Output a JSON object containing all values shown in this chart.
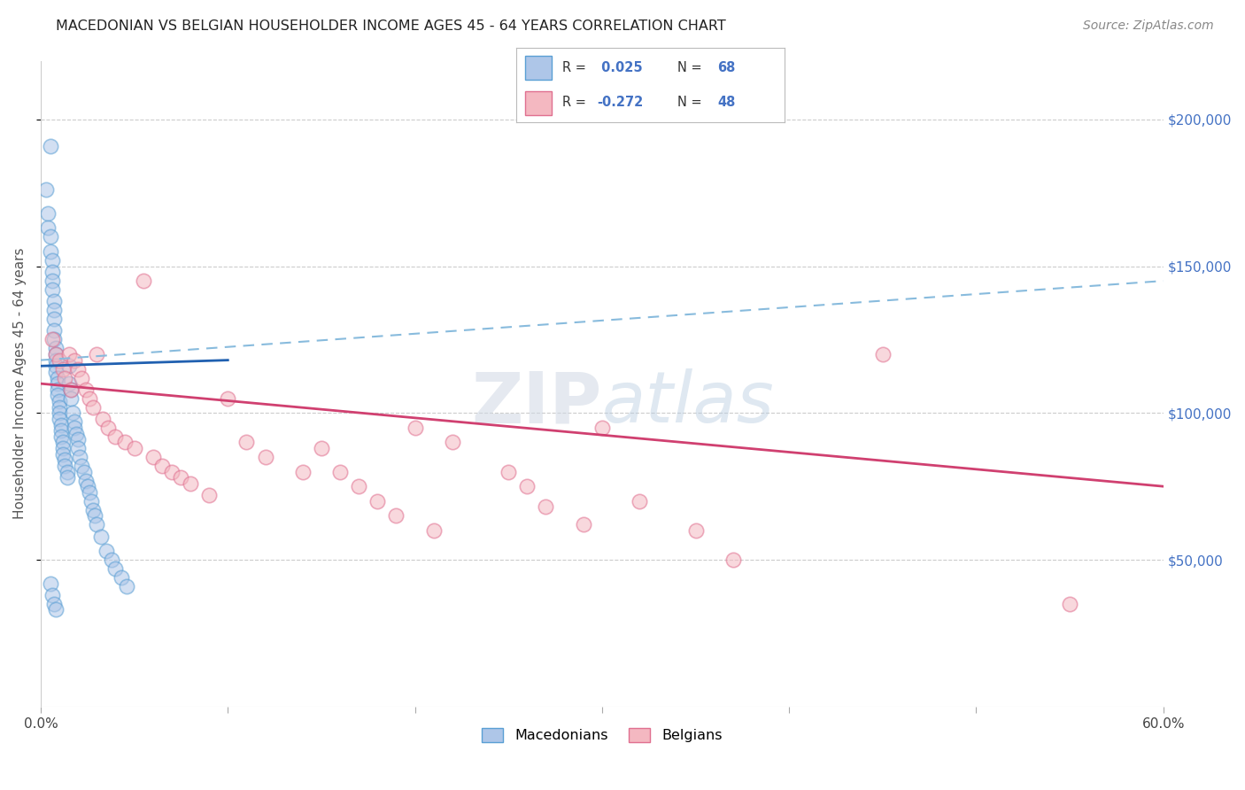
{
  "title": "MACEDONIAN VS BELGIAN HOUSEHOLDER INCOME AGES 45 - 64 YEARS CORRELATION CHART",
  "source": "Source: ZipAtlas.com",
  "ylabel": "Householder Income Ages 45 - 64 years",
  "xlim": [
    0.0,
    0.6
  ],
  "ylim": [
    0,
    220000
  ],
  "blue_color": "#aec6e8",
  "blue_edge": "#5a9fd4",
  "pink_color": "#f4b8c1",
  "pink_edge": "#e07090",
  "trend_blue": "#2060b0",
  "trend_pink": "#d04070",
  "trend_dashed_blue": "#88bbdd",
  "background": "#ffffff",
  "mac_x": [
    0.003,
    0.004,
    0.004,
    0.005,
    0.005,
    0.005,
    0.006,
    0.006,
    0.006,
    0.006,
    0.007,
    0.007,
    0.007,
    0.007,
    0.007,
    0.008,
    0.008,
    0.008,
    0.008,
    0.008,
    0.009,
    0.009,
    0.009,
    0.009,
    0.01,
    0.01,
    0.01,
    0.01,
    0.011,
    0.011,
    0.011,
    0.012,
    0.012,
    0.012,
    0.013,
    0.013,
    0.014,
    0.014,
    0.015,
    0.015,
    0.016,
    0.016,
    0.017,
    0.018,
    0.018,
    0.019,
    0.02,
    0.02,
    0.021,
    0.022,
    0.023,
    0.024,
    0.025,
    0.026,
    0.027,
    0.028,
    0.029,
    0.03,
    0.032,
    0.035,
    0.038,
    0.04,
    0.043,
    0.046,
    0.005,
    0.006,
    0.007,
    0.008
  ],
  "mac_y": [
    176000,
    168000,
    163000,
    191000,
    160000,
    155000,
    152000,
    148000,
    145000,
    142000,
    138000,
    135000,
    132000,
    128000,
    125000,
    122000,
    120000,
    118000,
    116000,
    114000,
    112000,
    110000,
    108000,
    106000,
    104000,
    102000,
    100000,
    98000,
    96000,
    94000,
    92000,
    90000,
    88000,
    86000,
    84000,
    82000,
    80000,
    78000,
    116000,
    110000,
    108000,
    105000,
    100000,
    97000,
    95000,
    93000,
    91000,
    88000,
    85000,
    82000,
    80000,
    77000,
    75000,
    73000,
    70000,
    67000,
    65000,
    62000,
    58000,
    53000,
    50000,
    47000,
    44000,
    41000,
    42000,
    38000,
    35000,
    33000
  ],
  "bel_x": [
    0.006,
    0.008,
    0.01,
    0.012,
    0.013,
    0.015,
    0.016,
    0.018,
    0.02,
    0.022,
    0.024,
    0.026,
    0.028,
    0.03,
    0.033,
    0.036,
    0.04,
    0.045,
    0.05,
    0.055,
    0.06,
    0.065,
    0.07,
    0.075,
    0.08,
    0.09,
    0.1,
    0.11,
    0.12,
    0.14,
    0.15,
    0.16,
    0.17,
    0.18,
    0.19,
    0.2,
    0.21,
    0.22,
    0.25,
    0.26,
    0.27,
    0.29,
    0.3,
    0.32,
    0.35,
    0.37,
    0.45,
    0.55
  ],
  "bel_y": [
    125000,
    120000,
    118000,
    115000,
    112000,
    120000,
    108000,
    118000,
    115000,
    112000,
    108000,
    105000,
    102000,
    120000,
    98000,
    95000,
    92000,
    90000,
    88000,
    145000,
    85000,
    82000,
    80000,
    78000,
    76000,
    72000,
    105000,
    90000,
    85000,
    80000,
    88000,
    80000,
    75000,
    70000,
    65000,
    95000,
    60000,
    90000,
    80000,
    75000,
    68000,
    62000,
    95000,
    70000,
    60000,
    50000,
    120000,
    35000
  ],
  "blue_line_x": [
    0.0,
    0.1
  ],
  "blue_line_y": [
    116000,
    118000
  ],
  "dashed_line_x": [
    0.0,
    0.6
  ],
  "dashed_line_y": [
    118000,
    145000
  ],
  "pink_line_x": [
    0.0,
    0.6
  ],
  "pink_line_y": [
    110000,
    75000
  ]
}
